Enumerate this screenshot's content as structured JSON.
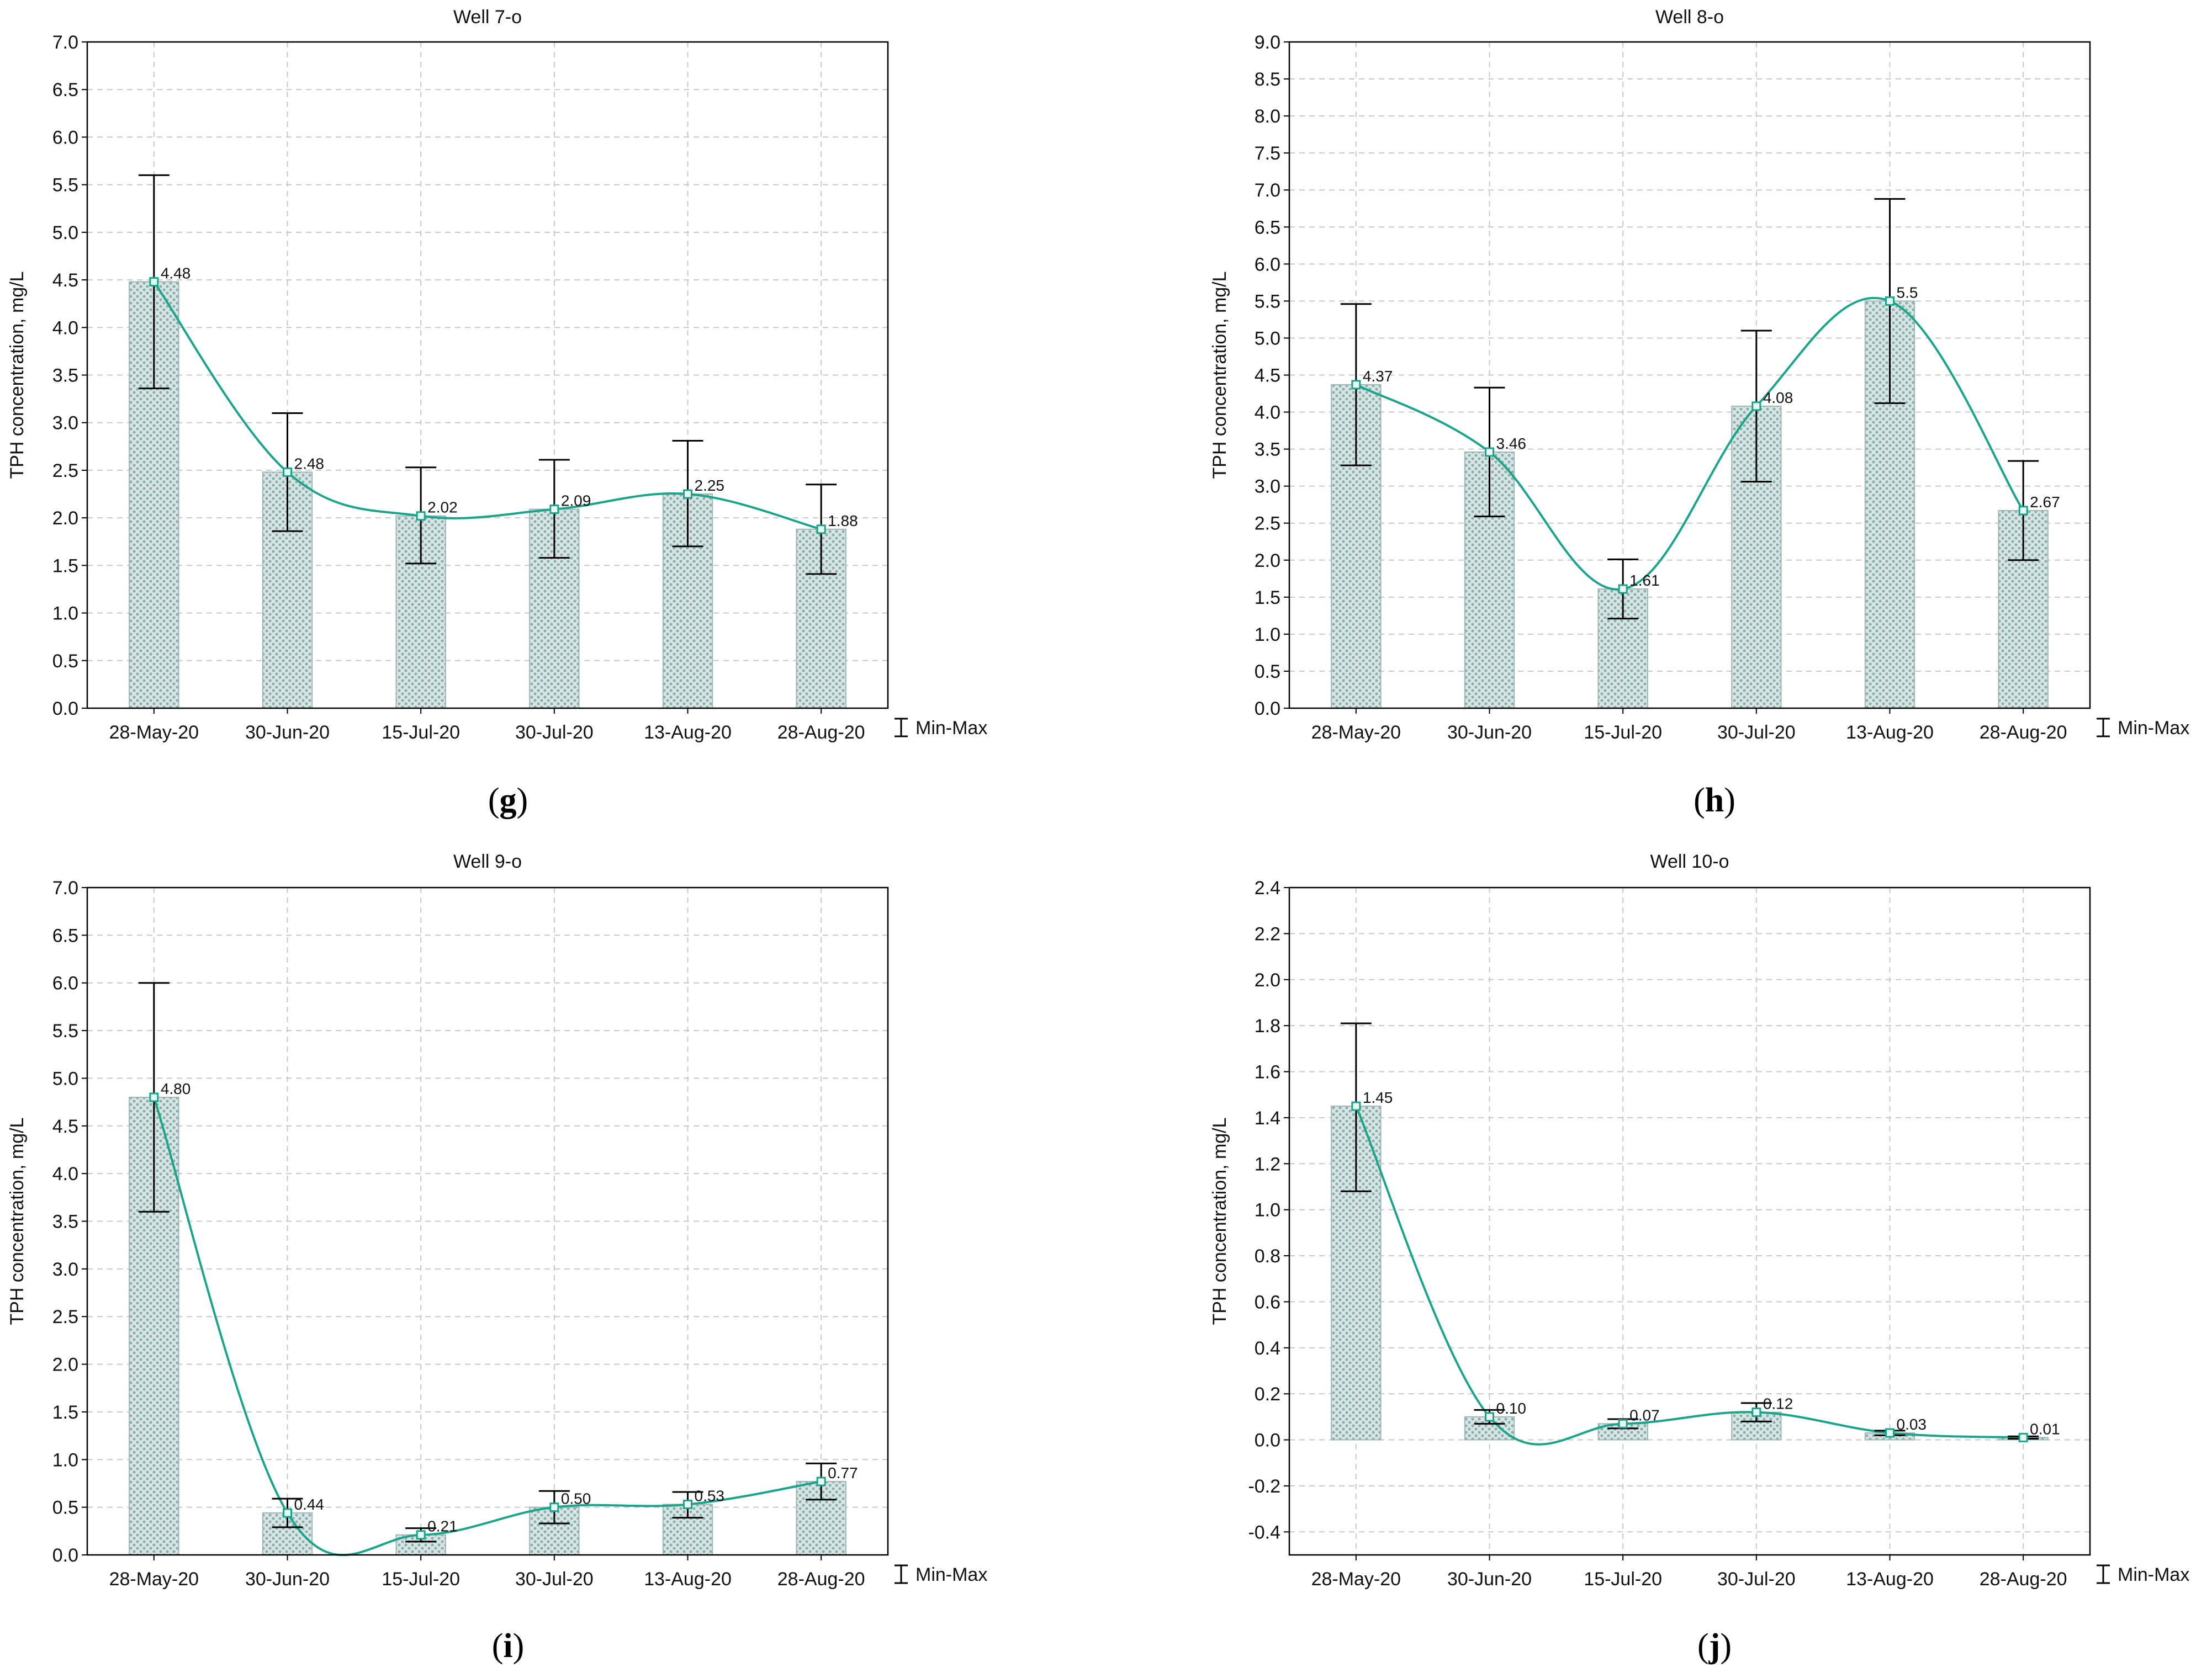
{
  "colors": {
    "line": "#1aa58a",
    "bar_fill": "#dbe4e6",
    "bar_dot": "#86b3a8",
    "grid": "#c8c8c8",
    "axis": "#000000",
    "error": "#000000"
  },
  "chart_data": [
    {
      "type": "bar+line",
      "panel": "g",
      "title": "Well 7-o",
      "ylabel": "TPH concentration, mg/L",
      "xlabel": "",
      "categories": [
        "28-May-20",
        "30-Jun-20",
        "15-Jul-20",
        "30-Jul-20",
        "13-Aug-20",
        "28-Aug-20"
      ],
      "values": [
        4.48,
        2.48,
        2.02,
        2.09,
        2.25,
        1.88
      ],
      "labels": [
        "4.48",
        "2.48",
        "2.02",
        "2.09",
        "2.25",
        "1.88"
      ],
      "min": [
        3.36,
        1.86,
        1.52,
        1.58,
        1.7,
        1.41
      ],
      "max": [
        5.6,
        3.1,
        2.53,
        2.61,
        2.81,
        2.35
      ],
      "ylim": [
        0,
        7
      ],
      "ystep": 0.5,
      "yticks": [
        "0.0",
        "0.5",
        "1.0",
        "1.5",
        "2.0",
        "2.5",
        "3.0",
        "3.5",
        "4.0",
        "4.5",
        "5.0",
        "5.5",
        "6.0",
        "6.5",
        "7.0"
      ],
      "legend": "Min-Max",
      "grid": true
    },
    {
      "type": "bar+line",
      "panel": "h",
      "title": "Well 8-o",
      "ylabel": "TPH concentration, mg/L",
      "xlabel": "",
      "categories": [
        "28-May-20",
        "30-Jun-20",
        "15-Jul-20",
        "30-Jul-20",
        "13-Aug-20",
        "28-Aug-20"
      ],
      "values": [
        4.37,
        3.46,
        1.61,
        4.08,
        5.5,
        2.67
      ],
      "labels": [
        "4.37",
        "3.46",
        "1.61",
        "4.08",
        "5.5",
        "2.67"
      ],
      "min": [
        3.28,
        2.59,
        1.21,
        3.06,
        4.12,
        2.0
      ],
      "max": [
        5.46,
        4.33,
        2.01,
        5.1,
        6.88,
        3.34
      ],
      "ylim": [
        0,
        9
      ],
      "ystep": 0.5,
      "yticks": [
        "0.0",
        "0.5",
        "1.0",
        "1.5",
        "2.0",
        "2.5",
        "3.0",
        "3.5",
        "4.0",
        "4.5",
        "5.0",
        "5.5",
        "6.0",
        "6.5",
        "7.0",
        "7.5",
        "8.0",
        "8.5",
        "9.0"
      ],
      "legend": "Min-Max",
      "grid": true
    },
    {
      "type": "bar+line",
      "panel": "i",
      "title": "Well 9-o",
      "ylabel": "TPH concentration, mg/L",
      "xlabel": "",
      "categories": [
        "28-May-20",
        "30-Jun-20",
        "15-Jul-20",
        "30-Jul-20",
        "13-Aug-20",
        "28-Aug-20"
      ],
      "values": [
        4.8,
        0.44,
        0.21,
        0.5,
        0.53,
        0.77
      ],
      "labels": [
        "4.80",
        "0.44",
        "0.21",
        "0.50",
        "0.53",
        "0.77"
      ],
      "min": [
        3.6,
        0.29,
        0.14,
        0.33,
        0.39,
        0.58
      ],
      "max": [
        6.0,
        0.59,
        0.28,
        0.67,
        0.66,
        0.96
      ],
      "ylim": [
        0,
        7
      ],
      "ystep": 0.5,
      "yticks": [
        "0.0",
        "0.5",
        "1.0",
        "1.5",
        "2.0",
        "2.5",
        "3.0",
        "3.5",
        "4.0",
        "4.5",
        "5.0",
        "5.5",
        "6.0",
        "6.5",
        "7.0"
      ],
      "legend": "Min-Max",
      "grid": true
    },
    {
      "type": "bar+line",
      "panel": "j",
      "title": "Well 10-o",
      "ylabel": "TPH concentration, mg/L",
      "xlabel": "",
      "categories": [
        "28-May-20",
        "30-Jun-20",
        "15-Jul-20",
        "30-Jul-20",
        "13-Aug-20",
        "28-Aug-20"
      ],
      "values": [
        1.45,
        0.1,
        0.07,
        0.12,
        0.03,
        0.01
      ],
      "labels": [
        "1.45",
        "0.10",
        "0.07",
        "0.12",
        "0.03",
        "0.01"
      ],
      "min": [
        1.08,
        0.07,
        0.05,
        0.08,
        0.02,
        0.005
      ],
      "max": [
        1.81,
        0.13,
        0.09,
        0.16,
        0.04,
        0.015
      ],
      "ylim": [
        -0.5,
        2.4
      ],
      "ystep": 0.2,
      "yticks": [
        "-0.4",
        "-0.2",
        "0.0",
        "0.2",
        "0.4",
        "0.6",
        "0.8",
        "1.0",
        "1.2",
        "1.4",
        "1.6",
        "1.8",
        "2.0",
        "2.2",
        "2.4"
      ],
      "legend": "Min-Max",
      "grid": true
    }
  ]
}
